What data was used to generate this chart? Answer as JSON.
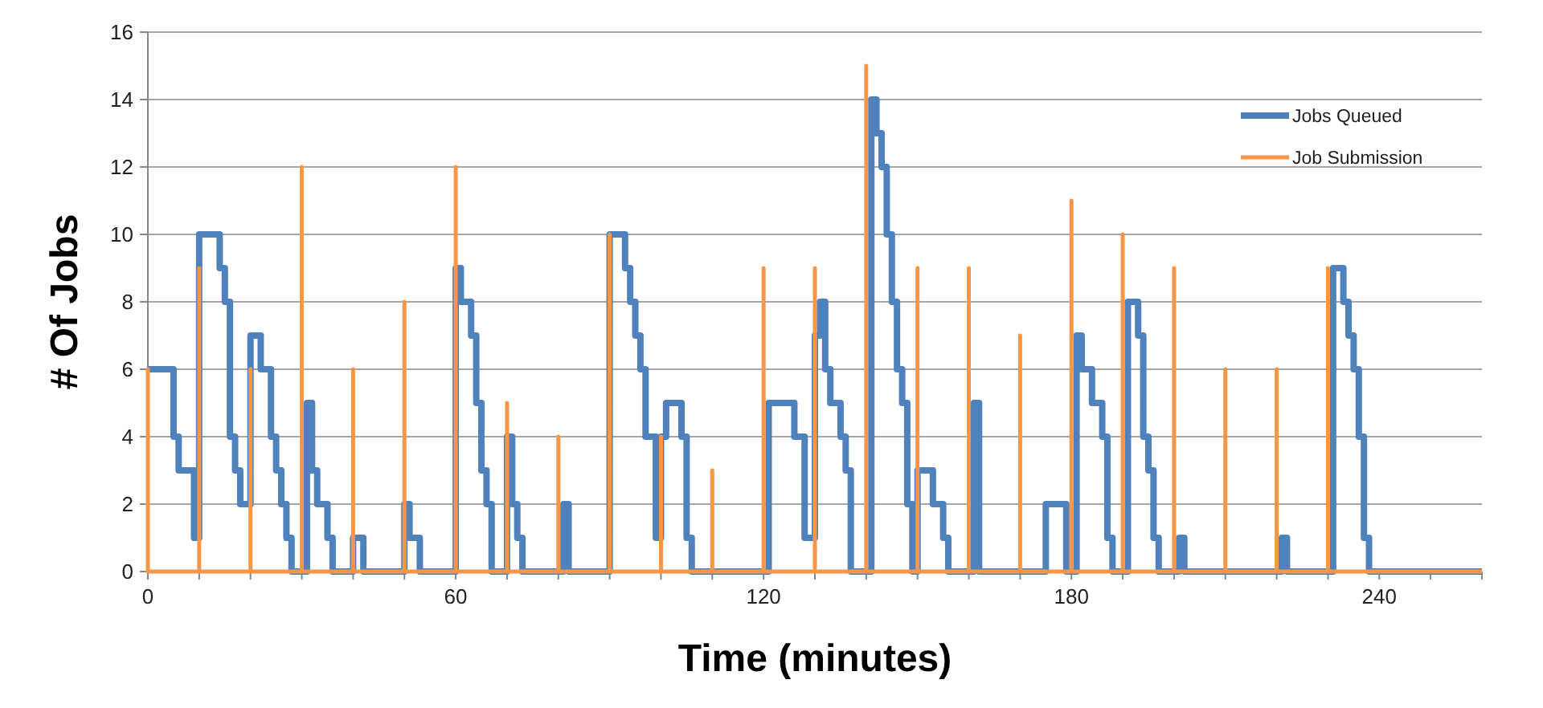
{
  "chart_data": {
    "type": "line",
    "xlabel": "Time (minutes)",
    "ylabel": "# Of Jobs",
    "xlim": [
      0,
      260
    ],
    "ylim": [
      0,
      16
    ],
    "xticks": [
      0,
      {
        "value": 10,
        "label": null
      },
      {
        "value": 20,
        "label": null
      },
      {
        "value": 30,
        "label": null
      },
      {
        "value": 40,
        "label": null
      },
      {
        "value": 50,
        "label": null
      },
      60,
      {
        "value": 70,
        "label": null
      },
      {
        "value": 80,
        "label": null
      },
      {
        "value": 90,
        "label": null
      },
      {
        "value": 100,
        "label": null
      },
      {
        "value": 110,
        "label": null
      },
      120,
      {
        "value": 130,
        "label": null
      },
      {
        "value": 140,
        "label": null
      },
      {
        "value": 150,
        "label": null
      },
      {
        "value": 160,
        "label": null
      },
      {
        "value": 170,
        "label": null
      },
      180,
      {
        "value": 190,
        "label": null
      },
      {
        "value": 200,
        "label": null
      },
      {
        "value": 210,
        "label": null
      },
      {
        "value": 220,
        "label": null
      },
      {
        "value": 230,
        "label": null
      },
      240,
      {
        "value": 250,
        "label": null
      },
      {
        "value": 260,
        "label": null
      }
    ],
    "yticks": [
      0,
      2,
      4,
      6,
      8,
      10,
      12,
      14,
      16
    ],
    "grid": "y",
    "legend": "top right",
    "marker": "none",
    "line_style": "solid",
    "series": [
      {
        "name": "Jobs Queued",
        "type": "step",
        "color": "#4f81bd",
        "x": [
          0,
          5,
          6,
          9,
          10,
          14,
          15,
          16,
          17,
          18,
          20,
          22,
          24,
          25,
          26,
          27,
          28,
          31,
          32,
          33,
          35,
          36,
          40,
          42,
          50,
          51,
          53,
          60,
          61,
          63,
          64,
          65,
          66,
          67,
          70,
          71,
          72,
          73,
          81,
          82,
          90,
          93,
          94,
          95,
          96,
          97,
          99,
          100,
          101,
          104,
          105,
          106,
          121,
          126,
          128,
          130,
          131,
          132,
          133,
          135,
          136,
          137,
          141,
          142,
          143,
          144,
          145,
          146,
          147,
          148,
          149,
          150,
          153,
          155,
          156,
          161,
          162,
          175,
          179,
          181,
          182,
          184,
          186,
          187,
          188,
          191,
          193,
          194,
          195,
          196,
          197,
          201,
          202,
          221,
          222,
          231,
          233,
          234,
          235,
          236,
          237,
          238,
          260
        ],
        "values": [
          6,
          4,
          3,
          1,
          10,
          9,
          8,
          4,
          3,
          2,
          7,
          6,
          4,
          3,
          2,
          1,
          0,
          5,
          3,
          2,
          1,
          0,
          1,
          0,
          2,
          1,
          0,
          9,
          8,
          7,
          5,
          3,
          2,
          0,
          4,
          2,
          1,
          0,
          2,
          0,
          10,
          9,
          8,
          7,
          6,
          4,
          1,
          4,
          5,
          4,
          1,
          0,
          5,
          4,
          1,
          7,
          8,
          6,
          5,
          4,
          3,
          0,
          14,
          13,
          12,
          10,
          8,
          6,
          5,
          2,
          0,
          3,
          2,
          1,
          0,
          5,
          0,
          2,
          0,
          7,
          6,
          5,
          4,
          1,
          0,
          8,
          7,
          4,
          3,
          1,
          0,
          1,
          0,
          1,
          0,
          9,
          8,
          7,
          6,
          4,
          1,
          0,
          0
        ]
      },
      {
        "name": "Job Submission",
        "type": "line",
        "color": "#f79646",
        "x": [
          0,
          0,
          0,
          10,
          10,
          10,
          20,
          20,
          20,
          30,
          30,
          30,
          40,
          40,
          40,
          50,
          50,
          50,
          60,
          60,
          60,
          70,
          70,
          70,
          80,
          80,
          80,
          90,
          90,
          90,
          100,
          100,
          100,
          110,
          110,
          110,
          120,
          120,
          120,
          130,
          130,
          130,
          140,
          140,
          140,
          150,
          150,
          150,
          160,
          160,
          160,
          170,
          170,
          170,
          180,
          180,
          180,
          190,
          190,
          190,
          200,
          200,
          200,
          210,
          210,
          210,
          220,
          220,
          220,
          230,
          230,
          230,
          260
        ],
        "values": [
          0,
          6,
          0,
          0,
          9,
          0,
          0,
          6,
          0,
          0,
          12,
          0,
          0,
          6,
          0,
          0,
          8,
          0,
          0,
          12,
          0,
          0,
          5,
          0,
          0,
          4,
          0,
          0,
          10,
          0,
          0,
          4,
          0,
          0,
          3,
          0,
          0,
          9,
          0,
          0,
          9,
          0,
          0,
          15,
          0,
          0,
          9,
          0,
          0,
          9,
          0,
          0,
          7,
          0,
          0,
          11,
          0,
          0,
          10,
          0,
          0,
          9,
          0,
          0,
          6,
          0,
          0,
          6,
          0,
          0,
          9,
          0,
          0
        ]
      }
    ]
  }
}
